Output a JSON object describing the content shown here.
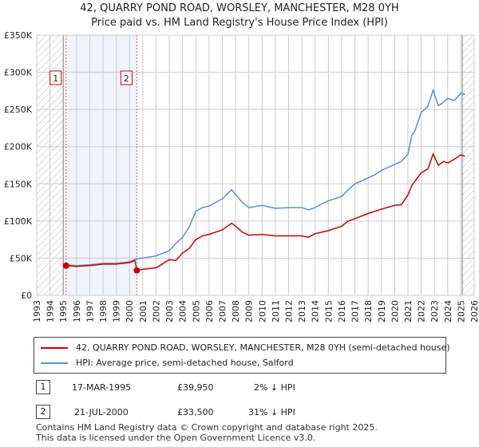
{
  "title": "42, QUARRY POND ROAD, WORSLEY, MANCHESTER, M28 0YH",
  "subtitle": "Price paid vs. HM Land Registry's House Price Index (HPI)",
  "colors": {
    "property": "#cc0000",
    "hpi": "#5b8fd0"
  },
  "chart_data": {
    "type": "line",
    "xlim": [
      1993,
      2026
    ],
    "ylim": [
      0,
      350000
    ],
    "x_ticks": [
      "1993",
      "1994",
      "1995",
      "1996",
      "1997",
      "1998",
      "1999",
      "2000",
      "2001",
      "2002",
      "2003",
      "2004",
      "2005",
      "2006",
      "2007",
      "2008",
      "2009",
      "2010",
      "2011",
      "2012",
      "2013",
      "2014",
      "2015",
      "2016",
      "2017",
      "2018",
      "2019",
      "2020",
      "2021",
      "2022",
      "2023",
      "2024",
      "2025",
      "2026"
    ],
    "y_ticks": [
      {
        "v": 0,
        "label": "£0"
      },
      {
        "v": 50000,
        "label": "£50K"
      },
      {
        "v": 100000,
        "label": "£100K"
      },
      {
        "v": 150000,
        "label": "£150K"
      },
      {
        "v": 200000,
        "label": "£200K"
      },
      {
        "v": 250000,
        "label": "£250K"
      },
      {
        "v": 300000,
        "label": "£300K"
      },
      {
        "v": 350000,
        "label": "£350K"
      }
    ],
    "series": [
      {
        "name": "hpi",
        "x": [
          1995.2,
          1996,
          1997,
          1998,
          1999,
          2000,
          2000.5,
          2001,
          2002,
          2003,
          2003.5,
          2004,
          2004.5,
          2005,
          2005.5,
          2006,
          2007,
          2007.7,
          2008,
          2008.5,
          2009,
          2010,
          2011,
          2012,
          2013,
          2013.5,
          2014,
          2014.5,
          2015,
          2016,
          2016.5,
          2017,
          2018,
          2018.5,
          2019,
          2020,
          2020.5,
          2021,
          2021.3,
          2021.5,
          2022,
          2022.5,
          2022.9,
          2023.3,
          2023.7,
          2024,
          2024.5,
          2025,
          2025.3
        ],
        "y": [
          41000,
          40000,
          41000,
          43000,
          43000,
          45000,
          49000,
          50000,
          53000,
          60000,
          70000,
          78000,
          92000,
          113000,
          118000,
          120000,
          130000,
          142000,
          136000,
          125000,
          118000,
          121000,
          117000,
          118000,
          118000,
          115000,
          118000,
          123000,
          127000,
          133000,
          142000,
          150000,
          158000,
          162000,
          168000,
          176000,
          180000,
          190000,
          216000,
          220000,
          246000,
          254000,
          276000,
          255000,
          260000,
          265000,
          262000,
          272000,
          270000
        ]
      },
      {
        "name": "property",
        "x": [
          1995.2,
          1996,
          1997,
          1998,
          1999,
          2000,
          2000.4,
          2000.55,
          2001,
          2002,
          2003,
          2003.5,
          2004,
          2004.5,
          2005,
          2005.5,
          2006,
          2007,
          2007.7,
          2008,
          2008.5,
          2009,
          2010,
          2011,
          2012,
          2013,
          2013.5,
          2014,
          2015,
          2016,
          2016.5,
          2017,
          2018,
          2019,
          2020,
          2020.5,
          2021,
          2021.3,
          2022,
          2022.5,
          2022.9,
          2023.3,
          2023.7,
          2024,
          2024.5,
          2025,
          2025.3
        ],
        "y": [
          40000,
          39000,
          40000,
          42000,
          42000,
          44000,
          47000,
          33500,
          35000,
          37000,
          48000,
          47000,
          57000,
          63000,
          75000,
          80000,
          82000,
          88000,
          97000,
          93000,
          85000,
          81000,
          82000,
          80000,
          80000,
          80000,
          78000,
          83000,
          87000,
          93000,
          100000,
          103000,
          110000,
          116000,
          121000,
          122000,
          135000,
          148000,
          165000,
          170000,
          190000,
          175000,
          180000,
          178000,
          183000,
          189000,
          187000
        ]
      }
    ],
    "sales": [
      {
        "label": "1",
        "x": 1995.21,
        "y": 39950
      },
      {
        "label": "2",
        "x": 2000.55,
        "y": 33500
      }
    ],
    "shade": [
      1995.21,
      2000.55
    ],
    "hatch_before": 1995,
    "hatch_after": 2025.1
  },
  "legend": {
    "property": "42, QUARRY POND ROAD, WORSLEY, MANCHESTER, M28 0YH (semi-detached house)",
    "hpi": "HPI: Average price, semi-detached house, Salford"
  },
  "table": [
    {
      "num": "1",
      "date": "17-MAR-1995",
      "price": "£39,950",
      "hpi": "2% ↓ HPI"
    },
    {
      "num": "2",
      "date": "21-JUL-2000",
      "price": "£33,500",
      "hpi": "31% ↓ HPI"
    }
  ],
  "footer": {
    "line1": "Contains HM Land Registry data © Crown copyright and database right 2025.",
    "line2": "This data is licensed under the Open Government Licence v3.0."
  }
}
